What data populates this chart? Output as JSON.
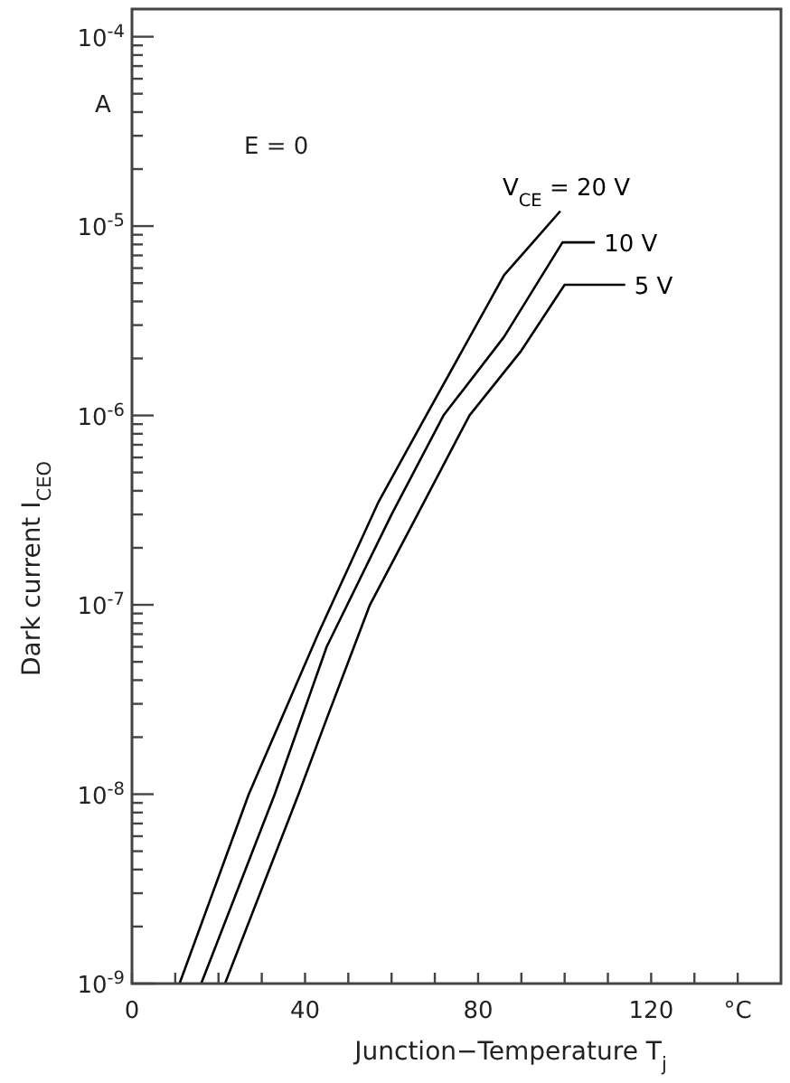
{
  "chart_data": {
    "type": "line",
    "xlabel": "Junction−Temperature  T$_{j}$",
    "ylabel": "Dark current  I$_{CEO}$",
    "annotations": [
      "A",
      "E = 0"
    ],
    "log": "y",
    "grid": false,
    "marker": "none",
    "line_style": "solid",
    "xlim": [
      0,
      150
    ],
    "ylim": [
      1e-09,
      0.00014
    ],
    "xticks": [
      0,
      {
        "value": 10,
        "label": null
      },
      {
        "value": 20,
        "label": null
      },
      {
        "value": 30,
        "label": null
      },
      40,
      {
        "value": 50,
        "label": null
      },
      {
        "value": 60,
        "label": null
      },
      {
        "value": 70,
        "label": null
      },
      80,
      {
        "value": 90,
        "label": null
      },
      {
        "value": 100,
        "label": null
      },
      {
        "value": 110,
        "label": null
      },
      120,
      {
        "value": 130,
        "label": null
      },
      {
        "value": 140,
        "label": "°C"
      }
    ],
    "yticks": [
      {
        "value": 1e-09,
        "label": "10$^{-9}$"
      },
      {
        "value": 2e-09,
        "label": null
      },
      {
        "value": 3e-09,
        "label": null
      },
      {
        "value": 4e-09,
        "label": null
      },
      {
        "value": 5e-09,
        "label": null
      },
      {
        "value": 6e-09,
        "label": null
      },
      {
        "value": 7e-09,
        "label": null
      },
      {
        "value": 8e-09,
        "label": null
      },
      {
        "value": 9e-09,
        "label": null
      },
      {
        "value": 1e-08,
        "label": "10$^{-8}$"
      },
      {
        "value": 2e-08,
        "label": null
      },
      {
        "value": 3e-08,
        "label": null
      },
      {
        "value": 4e-08,
        "label": null
      },
      {
        "value": 5e-08,
        "label": null
      },
      {
        "value": 6e-08,
        "label": null
      },
      {
        "value": 7e-08,
        "label": null
      },
      {
        "value": 8e-08,
        "label": null
      },
      {
        "value": 9e-08,
        "label": null
      },
      {
        "value": 1e-07,
        "label": "10$^{-7}$"
      },
      {
        "value": 2e-07,
        "label": null
      },
      {
        "value": 3e-07,
        "label": null
      },
      {
        "value": 4e-07,
        "label": null
      },
      {
        "value": 5e-07,
        "label": null
      },
      {
        "value": 6e-07,
        "label": null
      },
      {
        "value": 7e-07,
        "label": null
      },
      {
        "value": 8e-07,
        "label": null
      },
      {
        "value": 9e-07,
        "label": null
      },
      {
        "value": 1e-06,
        "label": "10$^{-6}$"
      },
      {
        "value": 2e-06,
        "label": null
      },
      {
        "value": 3e-06,
        "label": null
      },
      {
        "value": 4e-06,
        "label": null
      },
      {
        "value": 5e-06,
        "label": null
      },
      {
        "value": 6e-06,
        "label": null
      },
      {
        "value": 7e-06,
        "label": null
      },
      {
        "value": 8e-06,
        "label": null
      },
      {
        "value": 9e-06,
        "label": null
      },
      {
        "value": 1e-05,
        "label": "10$^{-5}$"
      },
      {
        "value": 2e-05,
        "label": null
      },
      {
        "value": 3e-05,
        "label": null
      },
      {
        "value": 4e-05,
        "label": null
      },
      {
        "value": 5e-05,
        "label": null
      },
      {
        "value": 6e-05,
        "label": null
      },
      {
        "value": 7e-05,
        "label": null
      },
      {
        "value": 8e-05,
        "label": null
      },
      {
        "value": 9e-05,
        "label": null
      },
      {
        "value": 0.0001,
        "label": "10$^{-4}$"
      }
    ],
    "series": [
      {
        "name": "V$_{CE}$ = 20 V",
        "color": "#000000",
        "x": [
          11,
          27,
          43,
          57,
          68,
          86,
          99
        ],
        "values": [
          1e-09,
          1e-08,
          7e-08,
          3.5e-07,
          1e-06,
          5.5e-06,
          1.2e-05
        ]
      },
      {
        "name": "10 V",
        "color": "#000000",
        "x": [
          16,
          33,
          45,
          60,
          72,
          86,
          99.5,
          107
        ],
        "values": [
          1e-09,
          1e-08,
          6e-08,
          3e-07,
          1e-06,
          2.6e-06,
          8.2e-06,
          8.2e-06
        ]
      },
      {
        "name": "5 V",
        "color": "#000000",
        "x": [
          21.5,
          38.5,
          45,
          55,
          66,
          78,
          90,
          100,
          114
        ],
        "values": [
          1e-09,
          1e-08,
          2.5e-08,
          1e-07,
          3e-07,
          1e-06,
          2.2e-06,
          4.9e-06,
          4.9e-06
        ]
      }
    ]
  }
}
